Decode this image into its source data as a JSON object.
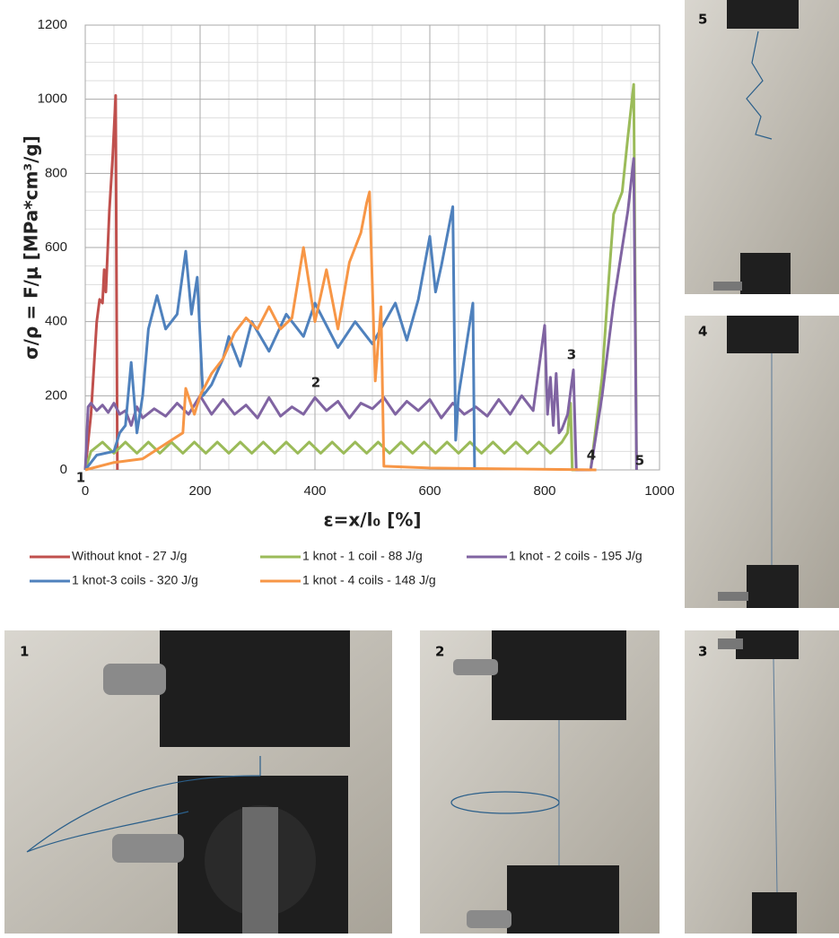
{
  "chart_data": {
    "type": "line",
    "y_label": "σ/ρ = F/μ [MPa*cm³/g]",
    "x_label": "ε=x/l₀ [%]",
    "xlim": [
      0,
      1000
    ],
    "xticks": [
      0,
      200,
      400,
      600,
      800,
      1000
    ],
    "ylim": [
      0,
      1200
    ],
    "yticks": [
      0,
      200,
      400,
      600,
      800,
      1000,
      1200
    ],
    "grid": true,
    "annotations": [
      "1",
      "2",
      "3",
      "4",
      "5"
    ],
    "series": [
      {
        "name": "Without knot - 27 J/g",
        "color": "#c0504d",
        "x": [
          0,
          10,
          20,
          25,
          30,
          33,
          36,
          42,
          48,
          53,
          56
        ],
        "values": [
          0,
          150,
          400,
          460,
          450,
          540,
          480,
          700,
          850,
          1010,
          0
        ]
      },
      {
        "name": "1 knot - 1 coil - 88 J/g",
        "color": "#9bbb59",
        "x": [
          0,
          10,
          30,
          50,
          70,
          90,
          110,
          130,
          150,
          170,
          190,
          210,
          230,
          250,
          270,
          290,
          310,
          330,
          350,
          370,
          390,
          410,
          430,
          450,
          470,
          490,
          510,
          530,
          550,
          570,
          590,
          610,
          630,
          650,
          670,
          690,
          710,
          730,
          750,
          770,
          790,
          810,
          830,
          840,
          845,
          848,
          870,
          880,
          900,
          910,
          920,
          935,
          945,
          955,
          960
        ],
        "values": [
          0,
          50,
          75,
          45,
          75,
          45,
          75,
          45,
          75,
          45,
          75,
          45,
          75,
          45,
          75,
          45,
          75,
          45,
          75,
          45,
          75,
          45,
          75,
          45,
          75,
          45,
          75,
          45,
          75,
          45,
          75,
          45,
          75,
          45,
          75,
          45,
          75,
          45,
          75,
          45,
          75,
          45,
          75,
          100,
          180,
          0,
          0,
          0,
          250,
          480,
          690,
          750,
          900,
          1040,
          0
        ]
      },
      {
        "name": "1 knot - 2 coils - 195 J/g",
        "color": "#8064a2",
        "x": [
          0,
          5,
          10,
          20,
          30,
          40,
          50,
          60,
          70,
          80,
          90,
          100,
          120,
          140,
          160,
          180,
          200,
          220,
          240,
          260,
          280,
          300,
          320,
          340,
          360,
          380,
          400,
          420,
          440,
          460,
          480,
          500,
          520,
          540,
          560,
          580,
          600,
          620,
          640,
          660,
          680,
          700,
          720,
          740,
          760,
          780,
          800,
          805,
          810,
          815,
          820,
          825,
          830,
          840,
          850,
          855,
          880,
          900,
          920,
          935,
          945,
          955,
          960
        ],
        "values": [
          0,
          170,
          180,
          160,
          175,
          155,
          180,
          150,
          160,
          120,
          170,
          140,
          165,
          145,
          180,
          150,
          200,
          150,
          190,
          150,
          175,
          140,
          195,
          145,
          170,
          150,
          195,
          160,
          185,
          140,
          180,
          165,
          195,
          150,
          185,
          160,
          190,
          140,
          180,
          150,
          170,
          145,
          190,
          150,
          200,
          160,
          390,
          150,
          250,
          120,
          260,
          100,
          110,
          150,
          270,
          0,
          0,
          200,
          450,
          600,
          700,
          840,
          0
        ]
      },
      {
        "name": "1 knot-3 coils - 320 J/g",
        "color": "#4f81bd",
        "x": [
          0,
          20,
          50,
          60,
          70,
          80,
          90,
          100,
          110,
          125,
          140,
          160,
          175,
          185,
          195,
          205,
          220,
          240,
          250,
          270,
          290,
          320,
          350,
          380,
          400,
          440,
          470,
          500,
          540,
          560,
          580,
          600,
          610,
          620,
          640,
          645,
          650,
          660,
          675,
          678
        ],
        "values": [
          0,
          40,
          50,
          100,
          120,
          290,
          100,
          200,
          380,
          470,
          380,
          420,
          590,
          420,
          520,
          200,
          230,
          300,
          360,
          280,
          400,
          320,
          420,
          360,
          450,
          330,
          400,
          340,
          450,
          350,
          460,
          630,
          480,
          550,
          710,
          80,
          200,
          300,
          450,
          0
        ]
      },
      {
        "name": "1 knot - 4 coils - 148 J/g",
        "color": "#f79646",
        "x": [
          0,
          50,
          100,
          150,
          170,
          175,
          190,
          200,
          220,
          240,
          260,
          280,
          300,
          320,
          340,
          360,
          380,
          400,
          420,
          440,
          460,
          480,
          490,
          495,
          505,
          515,
          520,
          600,
          890
        ],
        "values": [
          0,
          20,
          30,
          80,
          100,
          220,
          150,
          200,
          260,
          300,
          370,
          410,
          380,
          440,
          380,
          410,
          600,
          400,
          540,
          380,
          560,
          640,
          720,
          750,
          240,
          440,
          10,
          5,
          0
        ]
      }
    ]
  },
  "photos": [
    {
      "label": "5"
    },
    {
      "label": "4"
    },
    {
      "label": "1"
    },
    {
      "label": "2"
    },
    {
      "label": "3"
    }
  ]
}
